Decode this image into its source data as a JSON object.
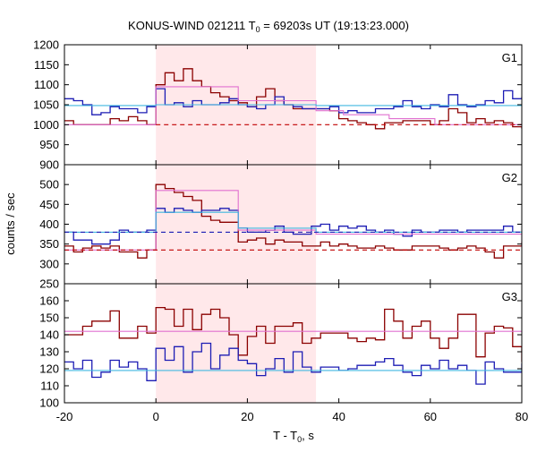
{
  "title_main": "KONUS-WIND 021211 T",
  "title_sub": "0",
  "title_rest": " = 69203s UT (19:13:23.000)",
  "xlabel_main": "T - T",
  "xlabel_sub": "0",
  "xlabel_rest": ", s",
  "ylabel": "counts / sec",
  "colors": {
    "data_red": "#8b0000",
    "data_blue": "#1c1cb4",
    "fit_red": "#e070d0",
    "fit_blue": "#40b8e0",
    "background_red": "#c00000",
    "background_blue": "#1c1cb4",
    "shade": "#ffe8ea",
    "axis": "#000000"
  },
  "chart_data": {
    "type": "line",
    "x_range": [
      -20,
      80
    ],
    "x_ticks": [
      -20,
      0,
      20,
      40,
      60,
      80
    ],
    "shaded_interval": [
      0,
      35
    ],
    "panels": [
      {
        "label": "G1",
        "ylim": [
          900,
          1200
        ],
        "y_ticks": [
          900,
          950,
          1000,
          1050,
          1100,
          1150,
          1200
        ],
        "series": [
          {
            "color": "data_red",
            "style": "step",
            "x": [
              -20,
              -18,
              -16,
              -14,
              -12,
              -10,
              -8,
              -6,
              -4,
              -2,
              0,
              2,
              4,
              6,
              8,
              10,
              12,
              14,
              16,
              18,
              20,
              22,
              24,
              26,
              28,
              30,
              32,
              34,
              36,
              38,
              40,
              42,
              44,
              46,
              48,
              50,
              52,
              54,
              56,
              58,
              60,
              62,
              64,
              66,
              68,
              70,
              72,
              74,
              76,
              78,
              80
            ],
            "y": [
              1010,
              1000,
              1000,
              1000,
              1000,
              1015,
              1010,
              1020,
              1010,
              1000,
              1100,
              1130,
              1110,
              1140,
              1110,
              1095,
              1080,
              1070,
              1060,
              1055,
              1045,
              1070,
              1090,
              1060,
              1050,
              1040,
              1040,
              1040,
              1040,
              1035,
              1015,
              1010,
              1005,
              1000,
              990,
              1005,
              1005,
              1010,
              1010,
              1010,
              1000,
              1010,
              1040,
              1030,
              1005,
              1015,
              1005,
              1010,
              1005,
              995,
              990
            ]
          },
          {
            "color": "data_blue",
            "style": "step",
            "x": [
              -20,
              -18,
              -16,
              -14,
              -12,
              -10,
              -8,
              -6,
              -4,
              -2,
              0,
              2,
              4,
              6,
              8,
              10,
              12,
              14,
              16,
              18,
              20,
              22,
              24,
              26,
              28,
              30,
              32,
              34,
              36,
              38,
              40,
              42,
              44,
              46,
              48,
              50,
              52,
              54,
              56,
              58,
              60,
              62,
              64,
              66,
              68,
              70,
              72,
              74,
              76,
              78,
              80
            ],
            "y": [
              1065,
              1060,
              1050,
              1025,
              1030,
              1045,
              1040,
              1040,
              1030,
              1045,
              1090,
              1050,
              1055,
              1045,
              1060,
              1050,
              1050,
              1055,
              1065,
              1050,
              1045,
              1040,
              1050,
              1070,
              1050,
              1045,
              1040,
              1040,
              1040,
              1045,
              1030,
              1035,
              1030,
              1030,
              1040,
              1040,
              1045,
              1060,
              1045,
              1040,
              1050,
              1045,
              1075,
              1050,
              1045,
              1050,
              1060,
              1055,
              1085,
              1065,
              1070
            ]
          },
          {
            "color": "fit_red",
            "style": "step",
            "x": [
              -20,
              0,
              1,
              9,
              18,
              35,
              41,
              51,
              61,
              80
            ],
            "y": [
              1000,
              1095,
              1095,
              1095,
              1060,
              1035,
              1025,
              1015,
              1000,
              1000
            ]
          },
          {
            "color": "fit_blue",
            "style": "step",
            "x": [
              -20,
              0,
              10,
              18,
              35,
              80
            ],
            "y": [
              1048,
              1050,
              1050,
              1050,
              1048,
              1048
            ]
          },
          {
            "color": "background_red",
            "style": "dashed",
            "x": [
              0,
              80
            ],
            "y": [
              1000,
              1000
            ]
          }
        ]
      },
      {
        "label": "G2",
        "ylim": [
          250,
          550
        ],
        "y_ticks": [
          250,
          300,
          350,
          400,
          450,
          500
        ],
        "series": [
          {
            "color": "data_red",
            "style": "step",
            "x": [
              -20,
              -18,
              -16,
              -14,
              -12,
              -10,
              -8,
              -6,
              -4,
              -2,
              0,
              2,
              4,
              6,
              8,
              10,
              12,
              14,
              16,
              18,
              20,
              22,
              24,
              26,
              28,
              30,
              32,
              34,
              36,
              38,
              40,
              42,
              44,
              46,
              48,
              50,
              52,
              54,
              56,
              58,
              60,
              62,
              64,
              66,
              68,
              70,
              72,
              74,
              76,
              78,
              80
            ],
            "y": [
              345,
              330,
              340,
              345,
              340,
              345,
              330,
              330,
              315,
              335,
              500,
              490,
              480,
              470,
              460,
              420,
              410,
              405,
              405,
              355,
              360,
              365,
              350,
              360,
              355,
              355,
              345,
              345,
              355,
              345,
              350,
              345,
              340,
              340,
              345,
              340,
              335,
              335,
              345,
              345,
              345,
              340,
              335,
              340,
              345,
              340,
              330,
              315,
              345,
              345,
              355
            ]
          },
          {
            "color": "data_blue",
            "style": "step",
            "x": [
              -20,
              -18,
              -16,
              -14,
              -12,
              -10,
              -8,
              -6,
              -4,
              -2,
              0,
              2,
              4,
              6,
              8,
              10,
              12,
              14,
              16,
              18,
              20,
              22,
              24,
              26,
              28,
              30,
              32,
              34,
              36,
              38,
              40,
              42,
              44,
              46,
              48,
              50,
              52,
              54,
              56,
              58,
              60,
              62,
              64,
              66,
              68,
              70,
              72,
              74,
              76,
              78,
              80
            ],
            "y": [
              380,
              360,
              360,
              350,
              350,
              360,
              385,
              380,
              380,
              385,
              440,
              430,
              440,
              435,
              430,
              435,
              435,
              440,
              435,
              390,
              380,
              380,
              385,
              395,
              380,
              375,
              375,
              395,
              400,
              385,
              395,
              390,
              395,
              385,
              380,
              385,
              375,
              370,
              385,
              380,
              380,
              385,
              385,
              380,
              385,
              385,
              385,
              385,
              395,
              380,
              380
            ]
          },
          {
            "color": "fit_red",
            "style": "step",
            "x": [
              -20,
              -16,
              0,
              9,
              18,
              35,
              80
            ],
            "y": [
              335,
              335,
              485,
              485,
              385,
              375,
              340
            ]
          },
          {
            "color": "fit_blue",
            "style": "step",
            "x": [
              -20,
              0,
              18,
              35,
              80
            ],
            "y": [
              380,
              430,
              390,
              380,
              380
            ]
          },
          {
            "color": "background_blue",
            "style": "dashed",
            "x": [
              -20,
              80
            ],
            "y": [
              380,
              380
            ]
          },
          {
            "color": "background_red",
            "style": "dashed",
            "x": [
              -20,
              80
            ],
            "y": [
              335,
              335
            ]
          }
        ]
      },
      {
        "label": "G3",
        "ylim": [
          100,
          170
        ],
        "y_ticks": [
          100,
          110,
          120,
          130,
          140,
          150,
          160
        ],
        "series": [
          {
            "color": "data_red",
            "style": "step",
            "x": [
              -20,
              -18,
              -16,
              -14,
              -12,
              -10,
              -8,
              -6,
              -4,
              -2,
              0,
              2,
              4,
              6,
              8,
              10,
              12,
              14,
              16,
              18,
              20,
              22,
              24,
              26,
              28,
              30,
              32,
              34,
              36,
              38,
              40,
              42,
              44,
              46,
              48,
              50,
              52,
              54,
              56,
              58,
              60,
              62,
              64,
              66,
              68,
              70,
              72,
              74,
              76,
              78,
              80
            ],
            "y": [
              140,
              140,
              145,
              148,
              148,
              154,
              138,
              138,
              145,
              141,
              156,
              155,
              145,
              155,
              143,
              152,
              155,
              150,
              140,
              128,
              139,
              145,
              135,
              145,
              145,
              147,
              135,
              138,
              141,
              141,
              141,
              138,
              136,
              138,
              137,
              155,
              148,
              138,
              145,
              148,
              138,
              132,
              138,
              152,
              152,
              127,
              141,
              145,
              144,
              133,
              124
            ]
          },
          {
            "color": "data_blue",
            "style": "step",
            "x": [
              -20,
              -18,
              -16,
              -14,
              -12,
              -10,
              -8,
              -6,
              -4,
              -2,
              0,
              2,
              4,
              6,
              8,
              10,
              12,
              14,
              16,
              18,
              20,
              22,
              24,
              26,
              28,
              30,
              32,
              34,
              36,
              38,
              40,
              42,
              44,
              46,
              48,
              50,
              52,
              54,
              56,
              58,
              60,
              62,
              64,
              66,
              68,
              70,
              72,
              74,
              76,
              78,
              80
            ],
            "y": [
              124,
              120,
              125,
              115,
              118,
              125,
              121,
              124,
              120,
              113,
              132,
              125,
              133,
              118,
              130,
              135,
              120,
              128,
              132,
              125,
              123,
              116,
              120,
              126,
              118,
              130,
              121,
              118,
              121,
              121,
              119,
              120,
              122,
              122,
              124,
              126,
              122,
              118,
              116,
              122,
              120,
              125,
              120,
              122,
              119,
              111,
              124,
              120,
              118,
              118,
              123
            ]
          },
          {
            "color": "fit_red",
            "style": "step",
            "x": [
              -20,
              80
            ],
            "y": [
              142,
              142
            ]
          },
          {
            "color": "fit_blue",
            "style": "step",
            "x": [
              -20,
              80
            ],
            "y": [
              119,
              119
            ]
          }
        ]
      }
    ]
  }
}
